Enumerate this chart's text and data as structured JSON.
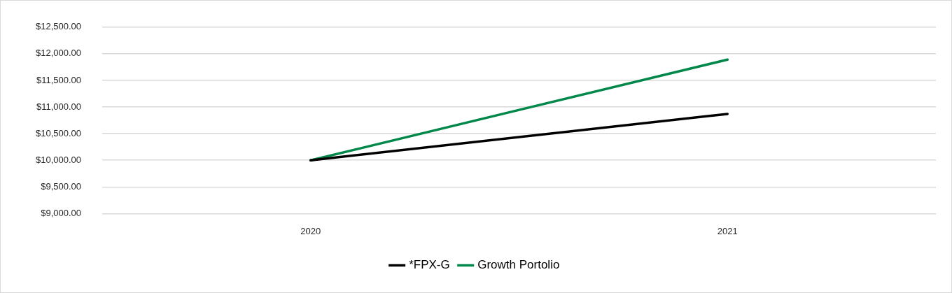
{
  "chart_data": {
    "type": "line",
    "categories": [
      "2020",
      "2021"
    ],
    "series": [
      {
        "name": "*FPX-G",
        "color": "#000000",
        "values": [
          10000,
          10870
        ]
      },
      {
        "name": "Growth Portolio",
        "color": "#00884a",
        "values": [
          10000,
          11890
        ]
      }
    ],
    "ylim": [
      9000,
      12500
    ],
    "yticks": [
      {
        "value": 9000,
        "label": "$9,000.00"
      },
      {
        "value": 9500,
        "label": "$9,500.00"
      },
      {
        "value": 10000,
        "label": "$10,000.00"
      },
      {
        "value": 10500,
        "label": "$10,500.00"
      },
      {
        "value": 11000,
        "label": "$11,000.00"
      },
      {
        "value": 11500,
        "label": "$11,500.00"
      },
      {
        "value": 12000,
        "label": "$12,000.00"
      },
      {
        "value": 12500,
        "label": "$12,500.00"
      }
    ],
    "grid": "y",
    "legend": "bottom",
    "marker": "none",
    "line_style": "solid"
  }
}
